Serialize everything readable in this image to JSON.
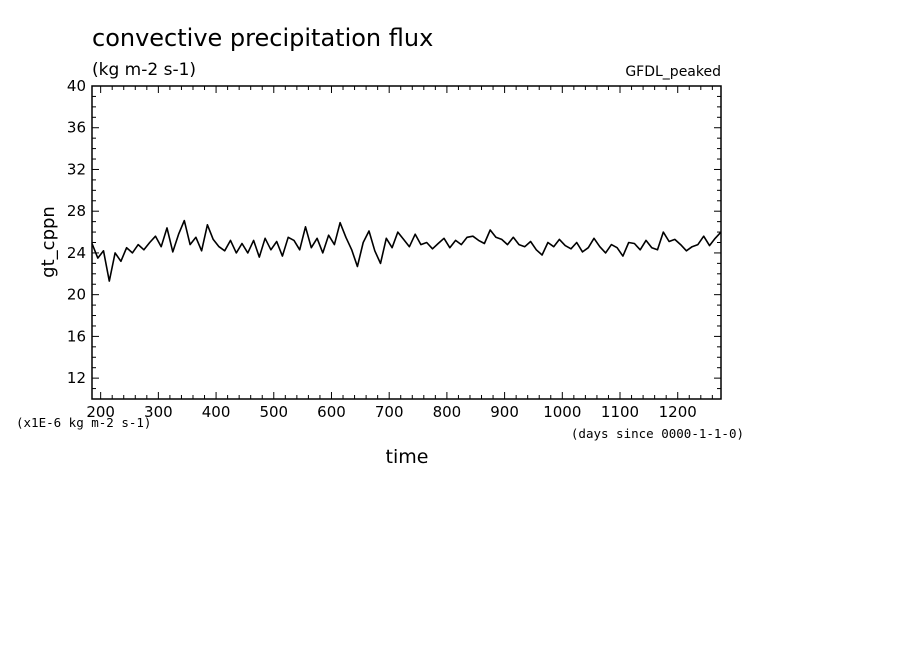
{
  "chart_data": {
    "type": "line",
    "title": "convective precipitation flux",
    "subtitle": "(kg m-2 s-1)",
    "annotation": "GFDL_peaked",
    "xlabel": "time",
    "x_units": "(days since 0000-1-1-0)",
    "ylabel": "gt_cppn",
    "y_units": "(x1E-6 kg m-2 s-1)",
    "xlim": [
      185,
      1275
    ],
    "ylim": [
      10,
      40
    ],
    "xticks": [
      200,
      300,
      400,
      500,
      600,
      700,
      800,
      900,
      1000,
      1100,
      1200
    ],
    "yticks": [
      12,
      16,
      20,
      24,
      28,
      32,
      36,
      40
    ],
    "grid": false,
    "color": "#000000",
    "series": [
      {
        "x": [
          185,
          195,
          205,
          215,
          225,
          235,
          245,
          255,
          265,
          275,
          285,
          295,
          305,
          315,
          325,
          335,
          345,
          355,
          365,
          375,
          385,
          395,
          405,
          415,
          425,
          435,
          445,
          455,
          465,
          475,
          485,
          495,
          505,
          515,
          525,
          535,
          545,
          555,
          565,
          575,
          585,
          595,
          605,
          615,
          625,
          635,
          645,
          655,
          665,
          675,
          685,
          695,
          705,
          715,
          725,
          735,
          745,
          755,
          765,
          775,
          785,
          795,
          805,
          815,
          825,
          835,
          845,
          855,
          865,
          875,
          885,
          895,
          905,
          915,
          925,
          935,
          945,
          955,
          965,
          975,
          985,
          995,
          1005,
          1015,
          1025,
          1035,
          1045,
          1055,
          1065,
          1075,
          1085,
          1095,
          1105,
          1115,
          1125,
          1135,
          1145,
          1155,
          1165,
          1175,
          1185,
          1195,
          1205,
          1215,
          1225,
          1235,
          1245,
          1255,
          1265,
          1275
        ],
        "y": [
          24.9,
          23.5,
          24.2,
          21.3,
          24.0,
          23.2,
          24.5,
          24.0,
          24.8,
          24.3,
          25.0,
          25.6,
          24.6,
          26.4,
          24.1,
          25.8,
          27.1,
          24.8,
          25.5,
          24.2,
          26.7,
          25.3,
          24.6,
          24.2,
          25.2,
          24.0,
          24.9,
          24.0,
          25.2,
          23.6,
          25.4,
          24.3,
          25.1,
          23.7,
          25.5,
          25.2,
          24.3,
          26.5,
          24.5,
          25.4,
          24.0,
          25.7,
          24.8,
          26.9,
          25.5,
          24.3,
          22.7,
          25.0,
          26.1,
          24.2,
          23.0,
          25.4,
          24.5,
          26.0,
          25.3,
          24.6,
          25.8,
          24.8,
          25.0,
          24.4,
          24.9,
          25.4,
          24.5,
          25.2,
          24.8,
          25.5,
          25.6,
          25.2,
          24.9,
          26.2,
          25.5,
          25.3,
          24.8,
          25.5,
          24.8,
          24.6,
          25.1,
          24.3,
          23.8,
          25.0,
          24.6,
          25.3,
          24.7,
          24.4,
          25.0,
          24.1,
          24.5,
          25.4,
          24.6,
          24.0,
          24.8,
          24.5,
          23.7,
          25.0,
          24.9,
          24.3,
          25.2,
          24.5,
          24.3,
          26.0,
          25.1,
          25.3,
          24.8,
          24.2,
          24.6,
          24.8,
          25.6,
          24.7,
          25.4,
          26.0
        ]
      }
    ]
  }
}
